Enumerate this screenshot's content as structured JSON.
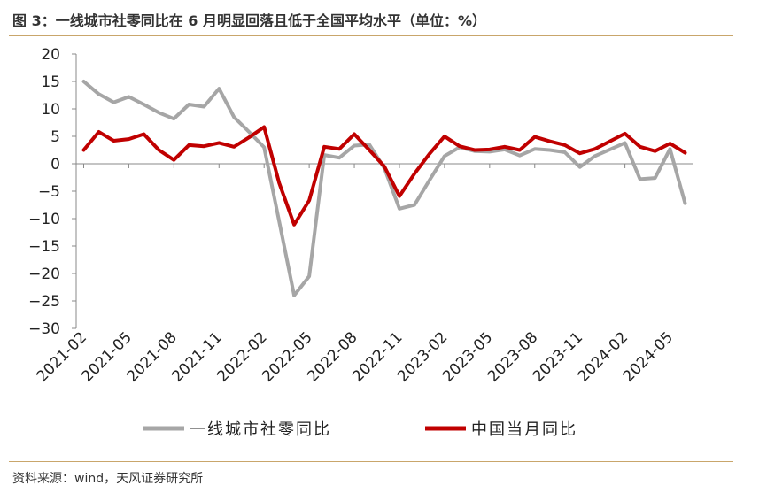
{
  "figure": {
    "title": "图 3：一线城市社零同比在 6 月明显回落且低于全国平均水平（单位：%）",
    "source": "资料来源：wind，天风证券研究所"
  },
  "chart_data": {
    "type": "line",
    "x": [
      "2021-02",
      "2021-03",
      "2021-04",
      "2021-05",
      "2021-06",
      "2021-07",
      "2021-08",
      "2021-09",
      "2021-10",
      "2021-11",
      "2021-12",
      "2022-01",
      "2022-02",
      "2022-03",
      "2022-04",
      "2022-05",
      "2022-06",
      "2022-07",
      "2022-08",
      "2022-09",
      "2022-10",
      "2022-11",
      "2022-12",
      "2023-01",
      "2023-02",
      "2023-03",
      "2023-04",
      "2023-05",
      "2023-06",
      "2023-07",
      "2023-08",
      "2023-09",
      "2023-10",
      "2023-11",
      "2023-12",
      "2024-01",
      "2024-02",
      "2024-03",
      "2024-04",
      "2024-05",
      "2024-06"
    ],
    "xticks": [
      "2021-02",
      "2021-05",
      "2021-08",
      "2021-11",
      "2022-02",
      "2022-05",
      "2022-08",
      "2022-11",
      "2023-02",
      "2023-05",
      "2023-08",
      "2023-11",
      "2024-02",
      "2024-05"
    ],
    "yticks": [
      20,
      15,
      10,
      5,
      0,
      -5,
      -10,
      -15,
      -20,
      -25,
      -30
    ],
    "ylim": [
      -30,
      20
    ],
    "series": [
      {
        "name": "一线城市社零同比",
        "color": "#a6a6a6",
        "values": [
          15,
          12.7,
          11.2,
          12.2,
          10.8,
          9.3,
          8.2,
          10.8,
          10.4,
          13.7,
          8.5,
          5.8,
          3,
          -10.5,
          -24,
          -20.5,
          1.6,
          1.1,
          3.3,
          3.5,
          -0.8,
          -8.2,
          -7.5,
          -3,
          1.4,
          3,
          2.3,
          2.2,
          2.6,
          1.5,
          2.7,
          2.5,
          2.1,
          -0.6,
          1.4,
          2.6,
          3.8,
          -2.8,
          -2.6,
          2.7,
          -7.2
        ]
      },
      {
        "name": "中国当月同比",
        "color": "#c00000",
        "values": [
          2.5,
          5.8,
          4.2,
          4.5,
          5.4,
          2.5,
          0.7,
          3.4,
          3.2,
          3.8,
          3.1,
          4.8,
          6.7,
          -3.5,
          -11.1,
          -6.7,
          3.1,
          2.7,
          5.4,
          2.5,
          -0.5,
          -5.9,
          -1.8,
          1.8,
          5,
          3.2,
          2.5,
          2.6,
          3.1,
          2.5,
          4.9,
          4.1,
          3.4,
          1.9,
          2.7,
          4.1,
          5.5,
          3.1,
          2.3,
          3.7,
          2
        ]
      }
    ]
  }
}
